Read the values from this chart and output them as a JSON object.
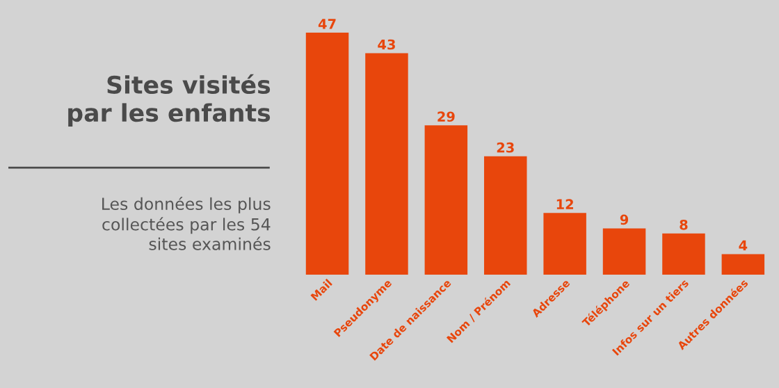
{
  "chart_data": {
    "type": "bar",
    "title": "Sites visités\npar les enfants",
    "subtitle": "Les données les plus\ncollectées par les 54\nsites examinés",
    "categories": [
      "Mail",
      "Pseudonyme",
      "Date de naissance",
      "Nom / Prénom",
      "Adresse",
      "Téléphone",
      "Infos sur un tiers",
      "Autres données"
    ],
    "values": [
      47,
      43,
      29,
      23,
      12,
      9,
      8,
      4
    ],
    "color": "#e8460c",
    "data_labels": true,
    "grid": false,
    "legend": false
  }
}
